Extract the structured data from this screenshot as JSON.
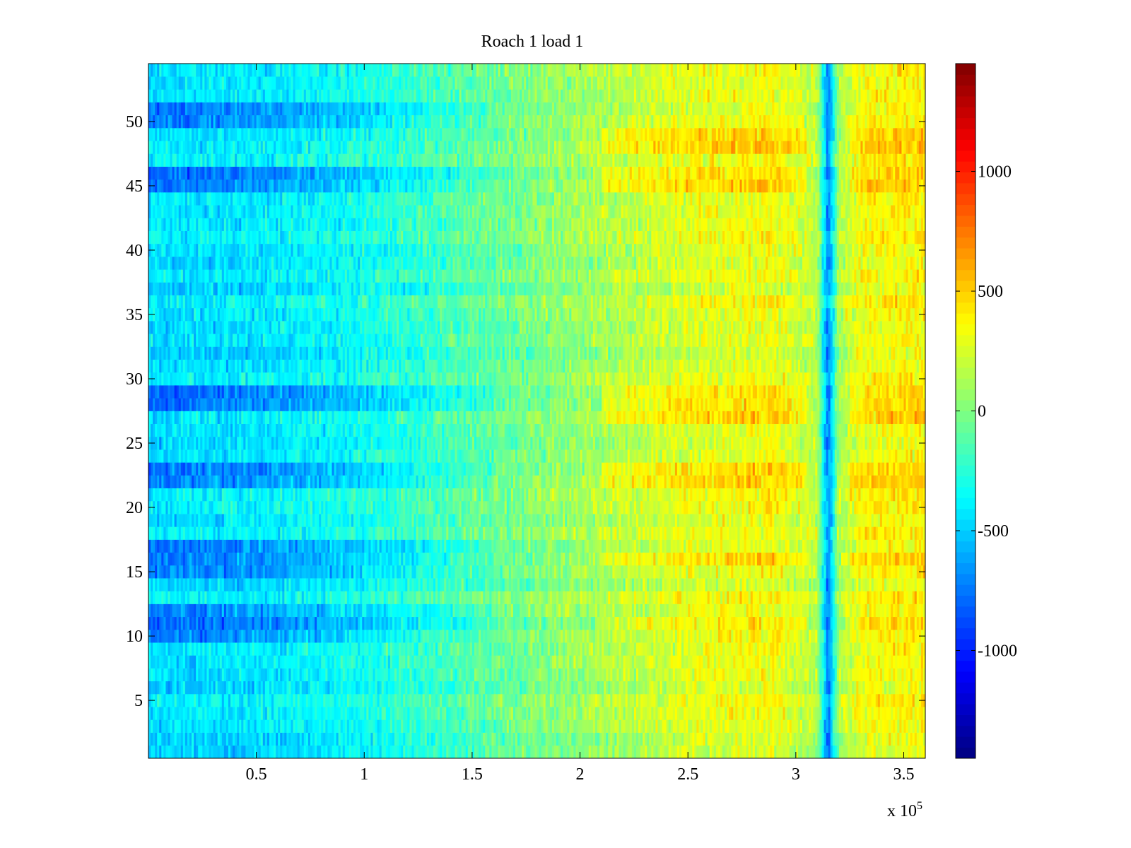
{
  "chart_data": {
    "type": "heatmap",
    "title": "Roach 1 load 1",
    "xlabel": "",
    "ylabel": "",
    "x_exponent_label": "x 10",
    "x_exponent_power": "5",
    "xlim": [
      0,
      3.6
    ],
    "ylim": [
      0.5,
      54.5
    ],
    "x_ticks": [
      0.5,
      1,
      1.5,
      2,
      2.5,
      3,
      3.5
    ],
    "x_tick_labels": [
      "0.5",
      "1",
      "1.5",
      "2",
      "2.5",
      "3",
      "3.5"
    ],
    "y_ticks": [
      5,
      10,
      15,
      20,
      25,
      30,
      35,
      40,
      45,
      50
    ],
    "y_tick_labels": [
      "5",
      "10",
      "15",
      "20",
      "25",
      "30",
      "35",
      "40",
      "45",
      "50"
    ],
    "rows": 54,
    "colormap": "jet",
    "clim": [
      -1450,
      1450
    ],
    "colorbar": {
      "ticks": [
        -1000,
        -500,
        0,
        500,
        1000
      ],
      "tick_labels": [
        "-1000",
        "-500",
        "0",
        "500",
        "1000"
      ]
    },
    "trend": {
      "x_knots": [
        0,
        0.5,
        1.0,
        1.5,
        2.0,
        2.5,
        2.9,
        3.1,
        3.15,
        3.2,
        3.3,
        3.6
      ],
      "values": [
        -450,
        -430,
        -320,
        -120,
        80,
        260,
        320,
        150,
        -750,
        120,
        330,
        380
      ]
    },
    "notes_rows_darker": [
      10,
      11,
      12,
      15,
      16,
      17,
      22,
      23,
      28,
      29,
      45,
      46,
      50,
      51
    ],
    "notes_rows_hotter": [
      11,
      16,
      22,
      23,
      27,
      28,
      29,
      45,
      46,
      48,
      49
    ]
  },
  "colors": {
    "axis": "#000000",
    "background": "#ffffff"
  }
}
